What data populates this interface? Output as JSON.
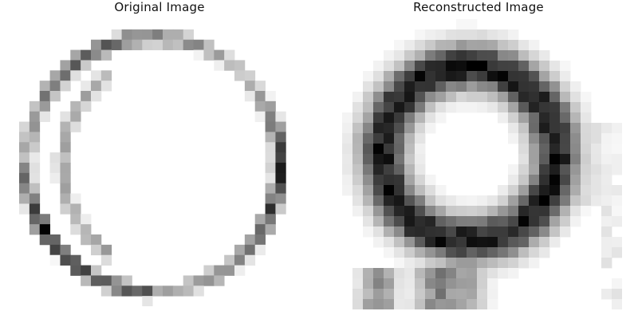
{
  "panels": {
    "original": {
      "title": "Original Image"
    },
    "reconstructed": {
      "title": "Reconstructed Image"
    }
  },
  "colormap": "grayscale-inverted"
}
